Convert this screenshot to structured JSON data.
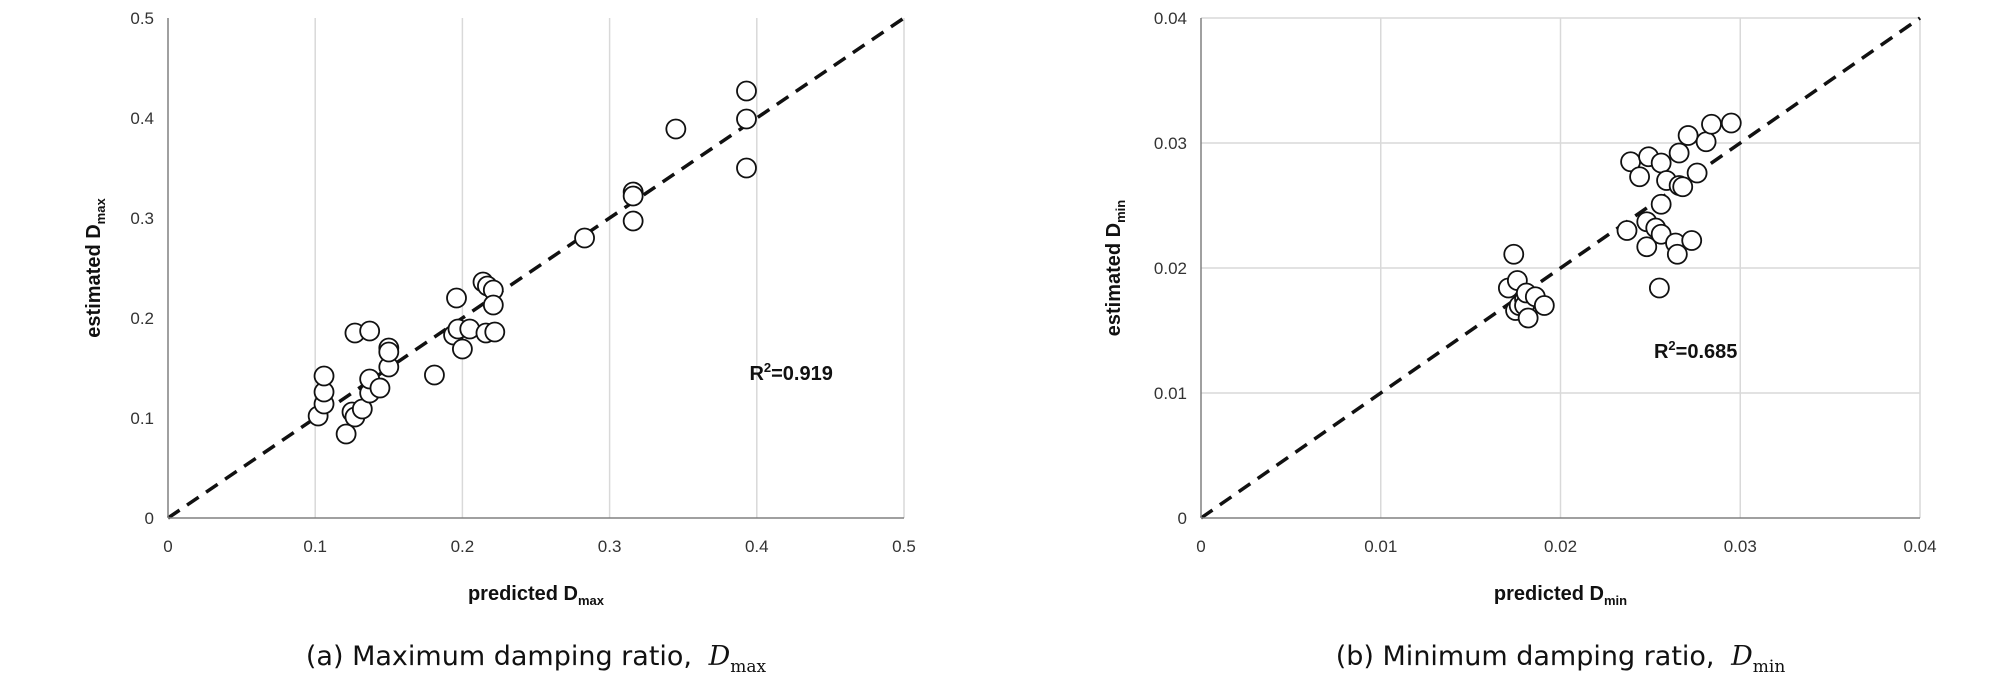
{
  "chart_data": [
    {
      "type": "scatter",
      "panel_label": "(a)",
      "caption": "Maximum damping ratio,",
      "caption_symbol": "D",
      "caption_subscript": "max",
      "xlabel": "predicted D",
      "xlabel_sub": "max",
      "ylabel": "estimated D",
      "ylabel_sub": "max",
      "xlim": [
        0,
        0.5
      ],
      "ylim": [
        0,
        0.5
      ],
      "xticks": [
        0,
        0.1,
        0.2,
        0.3,
        0.4,
        0.5
      ],
      "yticks": [
        0,
        0.1,
        0.2,
        0.3,
        0.4,
        0.5
      ],
      "xtick_labels": [
        "0",
        "0.1",
        "0.2",
        "0.3",
        "0.4",
        "0.5"
      ],
      "ytick_labels": [
        "0",
        "0.1",
        "0.2",
        "0.3",
        "0.4",
        "0.5"
      ],
      "grid": "vertical",
      "reference_line": "1:1 dashed",
      "annotation": {
        "text": "R",
        "sup": "2",
        "value": "=0.919",
        "x": 0.395,
        "y": 0.138
      },
      "points": [
        [
          0.102,
          0.102
        ],
        [
          0.106,
          0.114
        ],
        [
          0.106,
          0.126
        ],
        [
          0.106,
          0.142
        ],
        [
          0.121,
          0.084
        ],
        [
          0.125,
          0.106
        ],
        [
          0.127,
          0.101
        ],
        [
          0.127,
          0.185
        ],
        [
          0.132,
          0.109
        ],
        [
          0.137,
          0.187
        ],
        [
          0.137,
          0.125
        ],
        [
          0.137,
          0.139
        ],
        [
          0.144,
          0.13
        ],
        [
          0.15,
          0.151
        ],
        [
          0.15,
          0.17
        ],
        [
          0.15,
          0.166
        ],
        [
          0.181,
          0.143
        ],
        [
          0.194,
          0.183
        ],
        [
          0.196,
          0.22
        ],
        [
          0.197,
          0.189
        ],
        [
          0.2,
          0.169
        ],
        [
          0.205,
          0.189
        ],
        [
          0.214,
          0.236
        ],
        [
          0.216,
          0.185
        ],
        [
          0.217,
          0.232
        ],
        [
          0.221,
          0.228
        ],
        [
          0.221,
          0.213
        ],
        [
          0.222,
          0.186
        ],
        [
          0.283,
          0.28
        ],
        [
          0.316,
          0.326
        ],
        [
          0.316,
          0.322
        ],
        [
          0.316,
          0.297
        ],
        [
          0.345,
          0.389
        ],
        [
          0.393,
          0.427
        ],
        [
          0.393,
          0.399
        ],
        [
          0.393,
          0.35
        ]
      ]
    },
    {
      "type": "scatter",
      "panel_label": "(b)",
      "caption": "Minimum damping ratio,",
      "caption_symbol": "D",
      "caption_subscript": "min",
      "xlabel": "predicted D",
      "xlabel_sub": "min",
      "ylabel": "estimated D",
      "ylabel_sub": "min",
      "xlim": [
        0,
        0.04
      ],
      "ylim": [
        0,
        0.04
      ],
      "xticks": [
        0,
        0.01,
        0.02,
        0.03,
        0.04
      ],
      "yticks": [
        0,
        0.01,
        0.02,
        0.03,
        0.04
      ],
      "xtick_labels": [
        "0",
        "0.01",
        "0.02",
        "0.03",
        "0.04"
      ],
      "ytick_labels": [
        "0",
        "0.01",
        "0.02",
        "0.03",
        "0.04"
      ],
      "grid": "both",
      "reference_line": "1:1 dashed",
      "annotation": {
        "text": "R",
        "sup": "2",
        "value": "=0.685",
        "x": 0.0252,
        "y": 0.0128
      },
      "points": [
        [
          0.0171,
          0.0184
        ],
        [
          0.0174,
          0.0211
        ],
        [
          0.0175,
          0.0166
        ],
        [
          0.0176,
          0.019
        ],
        [
          0.0177,
          0.017
        ],
        [
          0.018,
          0.0175
        ],
        [
          0.018,
          0.017
        ],
        [
          0.0181,
          0.018
        ],
        [
          0.0182,
          0.016
        ],
        [
          0.0186,
          0.0177
        ],
        [
          0.0191,
          0.017
        ],
        [
          0.0237,
          0.023
        ],
        [
          0.0239,
          0.0285
        ],
        [
          0.0244,
          0.0273
        ],
        [
          0.0248,
          0.0237
        ],
        [
          0.0248,
          0.0217
        ],
        [
          0.0249,
          0.0289
        ],
        [
          0.0253,
          0.0232
        ],
        [
          0.0255,
          0.0184
        ],
        [
          0.0256,
          0.0284
        ],
        [
          0.0256,
          0.0251
        ],
        [
          0.0256,
          0.0227
        ],
        [
          0.0259,
          0.027
        ],
        [
          0.0264,
          0.022
        ],
        [
          0.0265,
          0.0211
        ],
        [
          0.0266,
          0.0292
        ],
        [
          0.0266,
          0.0266
        ],
        [
          0.0268,
          0.0265
        ],
        [
          0.0271,
          0.0306
        ],
        [
          0.0273,
          0.0222
        ],
        [
          0.0276,
          0.0276
        ],
        [
          0.0281,
          0.0301
        ],
        [
          0.0284,
          0.0315
        ],
        [
          0.0295,
          0.0316
        ]
      ]
    }
  ]
}
